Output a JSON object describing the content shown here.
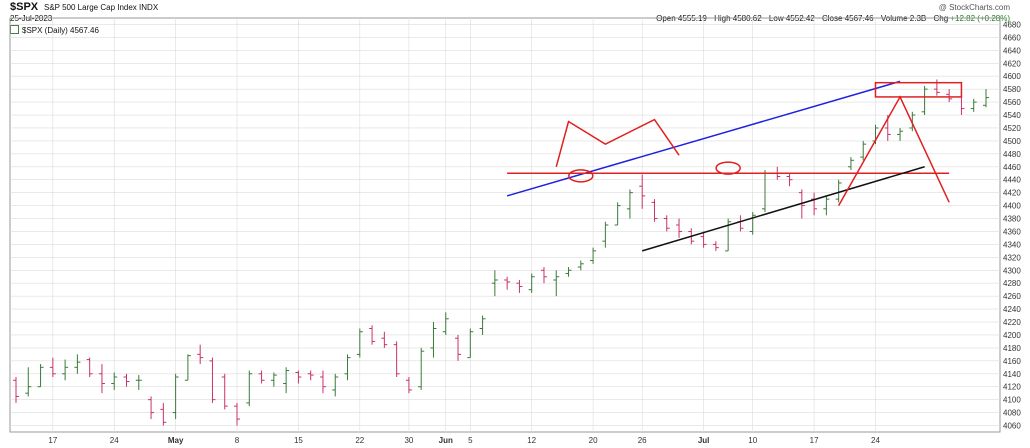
{
  "header": {
    "symbol": "$SPX",
    "name": "S&P 500 Large Cap Index",
    "exchange": "INDX",
    "date": "25-Jul-2023",
    "copyright": "@ StockCharts.com",
    "open_label": "Open",
    "open": "4555.19",
    "high_label": "High",
    "high": "4580.62",
    "low_label": "Low",
    "low": "4552.42",
    "close_label": "Close",
    "close": "4567.46",
    "volume_label": "Volume",
    "volume": "2.3B",
    "chg_label": "Chg",
    "chg": "+12.82 (+0.28%)",
    "legend": "$SPX (Daily) 4567.46"
  },
  "colors": {
    "up": "#3a7a3a",
    "down": "#c8326a",
    "trend_blue": "#2020e0",
    "trend_red": "#e02020",
    "trend_black": "#111111",
    "grid": "#dcdcdc"
  },
  "chart_data": {
    "type": "ohlc",
    "ylim": [
      4050,
      4690
    ],
    "y_ticks": [
      4060,
      4080,
      4100,
      4120,
      4140,
      4160,
      4180,
      4200,
      4220,
      4240,
      4260,
      4280,
      4300,
      4320,
      4340,
      4360,
      4380,
      4400,
      4420,
      4440,
      4460,
      4480,
      4500,
      4520,
      4540,
      4560,
      4580,
      4600,
      4620,
      4640,
      4660,
      4680
    ],
    "x_ticks": [
      {
        "label": "17",
        "index": 3,
        "bold": false
      },
      {
        "label": "24",
        "index": 8,
        "bold": false
      },
      {
        "label": "May",
        "index": 13,
        "bold": true
      },
      {
        "label": "8",
        "index": 18,
        "bold": false
      },
      {
        "label": "15",
        "index": 23,
        "bold": false
      },
      {
        "label": "22",
        "index": 28,
        "bold": false
      },
      {
        "label": "30",
        "index": 32,
        "bold": false
      },
      {
        "label": "Jun",
        "index": 35,
        "bold": true
      },
      {
        "label": "5",
        "index": 37,
        "bold": false
      },
      {
        "label": "12",
        "index": 42,
        "bold": false
      },
      {
        "label": "20",
        "index": 47,
        "bold": false
      },
      {
        "label": "26",
        "index": 51,
        "bold": false
      },
      {
        "label": "Jul",
        "index": 56,
        "bold": true
      },
      {
        "label": "10",
        "index": 60,
        "bold": false
      },
      {
        "label": "17",
        "index": 65,
        "bold": false
      },
      {
        "label": "24",
        "index": 70,
        "bold": false
      }
    ],
    "bars": [
      {
        "o": 4130,
        "h": 4135,
        "l": 4095,
        "c": 4105
      },
      {
        "o": 4110,
        "h": 4150,
        "l": 4105,
        "c": 4120
      },
      {
        "o": 4120,
        "h": 4155,
        "l": 4120,
        "c": 4150
      },
      {
        "o": 4150,
        "h": 4165,
        "l": 4135,
        "c": 4140
      },
      {
        "o": 4140,
        "h": 4162,
        "l": 4130,
        "c": 4150
      },
      {
        "o": 4150,
        "h": 4170,
        "l": 4140,
        "c": 4158
      },
      {
        "o": 4162,
        "h": 4165,
        "l": 4135,
        "c": 4140
      },
      {
        "o": 4140,
        "h": 4155,
        "l": 4110,
        "c": 4125
      },
      {
        "o": 4125,
        "h": 4142,
        "l": 4115,
        "c": 4135
      },
      {
        "o": 4135,
        "h": 4140,
        "l": 4120,
        "c": 4128
      },
      {
        "o": 4130,
        "h": 4138,
        "l": 4115,
        "c": 4130
      },
      {
        "o": 4100,
        "h": 4105,
        "l": 4070,
        "c": 4080
      },
      {
        "o": 4085,
        "h": 4095,
        "l": 4060,
        "c": 4065
      },
      {
        "o": 4080,
        "h": 4140,
        "l": 4070,
        "c": 4135
      },
      {
        "o": 4130,
        "h": 4170,
        "l": 4130,
        "c": 4168
      },
      {
        "o": 4170,
        "h": 4185,
        "l": 4155,
        "c": 4165
      },
      {
        "o": 4160,
        "h": 4165,
        "l": 4095,
        "c": 4100
      },
      {
        "o": 4135,
        "h": 4140,
        "l": 4085,
        "c": 4090
      },
      {
        "o": 4090,
        "h": 4095,
        "l": 4060,
        "c": 4070
      },
      {
        "o": 4095,
        "h": 4145,
        "l": 4090,
        "c": 4140
      },
      {
        "o": 4140,
        "h": 4145,
        "l": 4125,
        "c": 4130
      },
      {
        "o": 4130,
        "h": 4142,
        "l": 4120,
        "c": 4138
      },
      {
        "o": 4125,
        "h": 4150,
        "l": 4110,
        "c": 4145
      },
      {
        "o": 4142,
        "h": 4145,
        "l": 4125,
        "c": 4135
      },
      {
        "o": 4140,
        "h": 4145,
        "l": 4130,
        "c": 4138
      },
      {
        "o": 4135,
        "h": 4145,
        "l": 4110,
        "c": 4120
      },
      {
        "o": 4115,
        "h": 4140,
        "l": 4105,
        "c": 4135
      },
      {
        "o": 4140,
        "h": 4170,
        "l": 4130,
        "c": 4165
      },
      {
        "o": 4170,
        "h": 4210,
        "l": 4165,
        "c": 4205
      },
      {
        "o": 4210,
        "h": 4215,
        "l": 4185,
        "c": 4190
      },
      {
        "o": 4195,
        "h": 4205,
        "l": 4180,
        "c": 4185
      },
      {
        "o": 4185,
        "h": 4190,
        "l": 4135,
        "c": 4140
      },
      {
        "o": 4130,
        "h": 4135,
        "l": 4110,
        "c": 4115
      },
      {
        "o": 4120,
        "h": 4180,
        "l": 4115,
        "c": 4175
      },
      {
        "o": 4180,
        "h": 4220,
        "l": 4165,
        "c": 4210
      },
      {
        "o": 4205,
        "h": 4235,
        "l": 4200,
        "c": 4225
      },
      {
        "o": 4195,
        "h": 4200,
        "l": 4160,
        "c": 4170
      },
      {
        "o": 4165,
        "h": 4210,
        "l": 4165,
        "c": 4205
      },
      {
        "o": 4210,
        "h": 4230,
        "l": 4200,
        "c": 4225
      },
      {
        "o": 4280,
        "h": 4300,
        "l": 4260,
        "c": 4285
      },
      {
        "o": 4285,
        "h": 4290,
        "l": 4270,
        "c": 4282
      },
      {
        "o": 4280,
        "h": 4285,
        "l": 4265,
        "c": 4275
      },
      {
        "o": 4270,
        "h": 4295,
        "l": 4265,
        "c": 4290
      },
      {
        "o": 4300,
        "h": 4305,
        "l": 4280,
        "c": 4290
      },
      {
        "o": 4285,
        "h": 4300,
        "l": 4260,
        "c": 4290
      },
      {
        "o": 4295,
        "h": 4305,
        "l": 4290,
        "c": 4300
      },
      {
        "o": 4305,
        "h": 4315,
        "l": 4300,
        "c": 4310
      },
      {
        "o": 4315,
        "h": 4335,
        "l": 4310,
        "c": 4330
      },
      {
        "o": 4345,
        "h": 4375,
        "l": 4335,
        "c": 4370
      },
      {
        "o": 4370,
        "h": 4405,
        "l": 4370,
        "c": 4400
      },
      {
        "o": 4395,
        "h": 4425,
        "l": 4380,
        "c": 4420
      },
      {
        "o": 4430,
        "h": 4448,
        "l": 4395,
        "c": 4415
      },
      {
        "o": 4405,
        "h": 4410,
        "l": 4375,
        "c": 4380
      },
      {
        "o": 4380,
        "h": 4385,
        "l": 4360,
        "c": 4365
      },
      {
        "o": 4370,
        "h": 4380,
        "l": 4350,
        "c": 4360
      },
      {
        "o": 4360,
        "h": 4365,
        "l": 4340,
        "c": 4345
      },
      {
        "o": 4352,
        "h": 4360,
        "l": 4335,
        "c": 4340
      },
      {
        "o": 4340,
        "h": 4345,
        "l": 4330,
        "c": 4335
      },
      {
        "o": 4330,
        "h": 4380,
        "l": 4330,
        "c": 4375
      },
      {
        "o": 4375,
        "h": 4385,
        "l": 4360,
        "c": 4365
      },
      {
        "o": 4360,
        "h": 4390,
        "l": 4355,
        "c": 4385
      },
      {
        "o": 4395,
        "h": 4455,
        "l": 4390,
        "c": 4450
      },
      {
        "o": 4450,
        "h": 4460,
        "l": 4440,
        "c": 4445
      },
      {
        "o": 4445,
        "h": 4450,
        "l": 4430,
        "c": 4440
      },
      {
        "o": 4420,
        "h": 4425,
        "l": 4380,
        "c": 4400
      },
      {
        "o": 4410,
        "h": 4420,
        "l": 4385,
        "c": 4395
      },
      {
        "o": 4395,
        "h": 4415,
        "l": 4385,
        "c": 4410
      },
      {
        "o": 4410,
        "h": 4440,
        "l": 4405,
        "c": 4435
      },
      {
        "o": 4460,
        "h": 4475,
        "l": 4455,
        "c": 4470
      },
      {
        "o": 4475,
        "h": 4500,
        "l": 4470,
        "c": 4495
      },
      {
        "o": 4500,
        "h": 4525,
        "l": 4495,
        "c": 4520
      },
      {
        "o": 4520,
        "h": 4540,
        "l": 4500,
        "c": 4510
      },
      {
        "o": 4510,
        "h": 4520,
        "l": 4500,
        "c": 4515
      },
      {
        "o": 4520,
        "h": 4545,
        "l": 4515,
        "c": 4540
      },
      {
        "o": 4545,
        "h": 4585,
        "l": 4540,
        "c": 4580
      },
      {
        "o": 4580,
        "h": 4595,
        "l": 4570,
        "c": 4575
      },
      {
        "o": 4572,
        "h": 4580,
        "l": 4560,
        "c": 4565
      },
      {
        "o": 4568,
        "h": 4575,
        "l": 4540,
        "c": 4550
      },
      {
        "o": 4550,
        "h": 4565,
        "l": 4545,
        "c": 4560
      },
      {
        "o": 4555,
        "h": 4580,
        "l": 4552,
        "c": 4567
      }
    ],
    "annotations": {
      "blue_line": [
        [
          40,
          4415
        ],
        [
          72,
          4592
        ]
      ],
      "red_horizontal": [
        [
          40,
          4450
        ],
        [
          76,
          4450
        ]
      ],
      "black_line": [
        [
          51,
          4330
        ],
        [
          74,
          4460
        ]
      ],
      "red_polyline_m": [
        [
          44,
          4460
        ],
        [
          45,
          4530
        ],
        [
          48,
          4495
        ],
        [
          52,
          4533
        ],
        [
          54,
          4478
        ]
      ],
      "red_v": [
        [
          67,
          4400
        ],
        [
          72,
          4568
        ],
        [
          76,
          4405
        ]
      ],
      "red_ellipses": [
        [
          46,
          4446
        ],
        [
          58,
          4458
        ]
      ],
      "red_box": [
        [
          70,
          4568
        ],
        [
          77,
          4590
        ]
      ]
    }
  }
}
